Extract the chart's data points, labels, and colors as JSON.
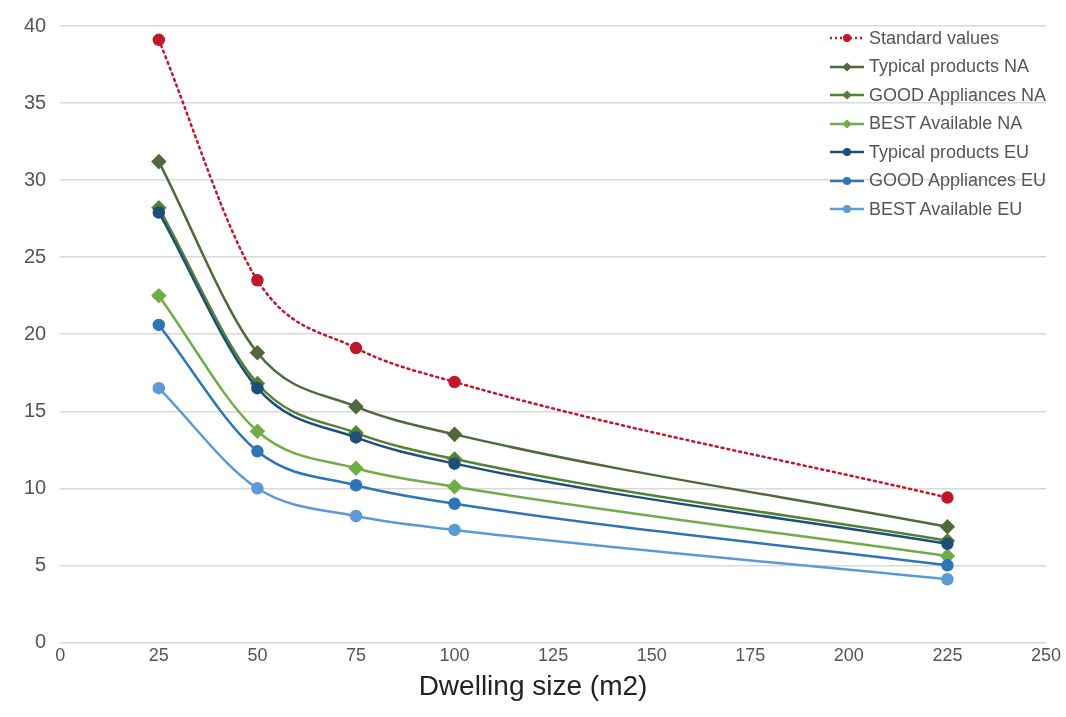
{
  "chart_data": {
    "type": "line",
    "xlabel": "Dwelling size (m2)",
    "x": [
      25,
      50,
      75,
      100,
      225
    ],
    "xlim": [
      0,
      250
    ],
    "xticks": [
      0,
      25,
      50,
      75,
      100,
      125,
      150,
      175,
      200,
      225,
      250
    ],
    "ylim": [
      0,
      40
    ],
    "yticks": [
      0,
      5,
      10,
      15,
      20,
      25,
      30,
      35,
      40
    ],
    "grid": "y",
    "legend": "top right",
    "series": [
      {
        "name": "Standard values",
        "color": "#c0182a",
        "marker": "circle",
        "line_style": "dotted",
        "values": [
          39.1,
          23.5,
          19.1,
          16.9,
          9.4
        ]
      },
      {
        "name": "Typical products NA",
        "color": "#4f6a3a",
        "marker": "diamond",
        "line_style": "solid",
        "values": [
          31.2,
          18.8,
          15.3,
          13.5,
          7.5
        ]
      },
      {
        "name": "GOOD Appliances NA",
        "color": "#548235",
        "marker": "diamond",
        "line_style": "solid",
        "values": [
          28.2,
          16.8,
          13.6,
          11.9,
          6.6
        ]
      },
      {
        "name": "BEST Available NA",
        "color": "#70ad47",
        "marker": "diamond",
        "line_style": "solid",
        "values": [
          22.5,
          13.7,
          11.3,
          10.1,
          5.6
        ]
      },
      {
        "name": "Typical products EU",
        "color": "#1f4e79",
        "marker": "circle",
        "line_style": "solid",
        "values": [
          27.9,
          16.5,
          13.3,
          11.6,
          6.4
        ]
      },
      {
        "name": "GOOD Appliances EU",
        "color": "#2e75b6",
        "marker": "circle",
        "line_style": "solid",
        "values": [
          20.6,
          12.4,
          10.2,
          9.0,
          5.0
        ]
      },
      {
        "name": "BEST Available EU",
        "color": "#5b9bd5",
        "marker": "circle",
        "line_style": "solid",
        "values": [
          16.5,
          10.0,
          8.2,
          7.3,
          4.1
        ]
      }
    ]
  }
}
